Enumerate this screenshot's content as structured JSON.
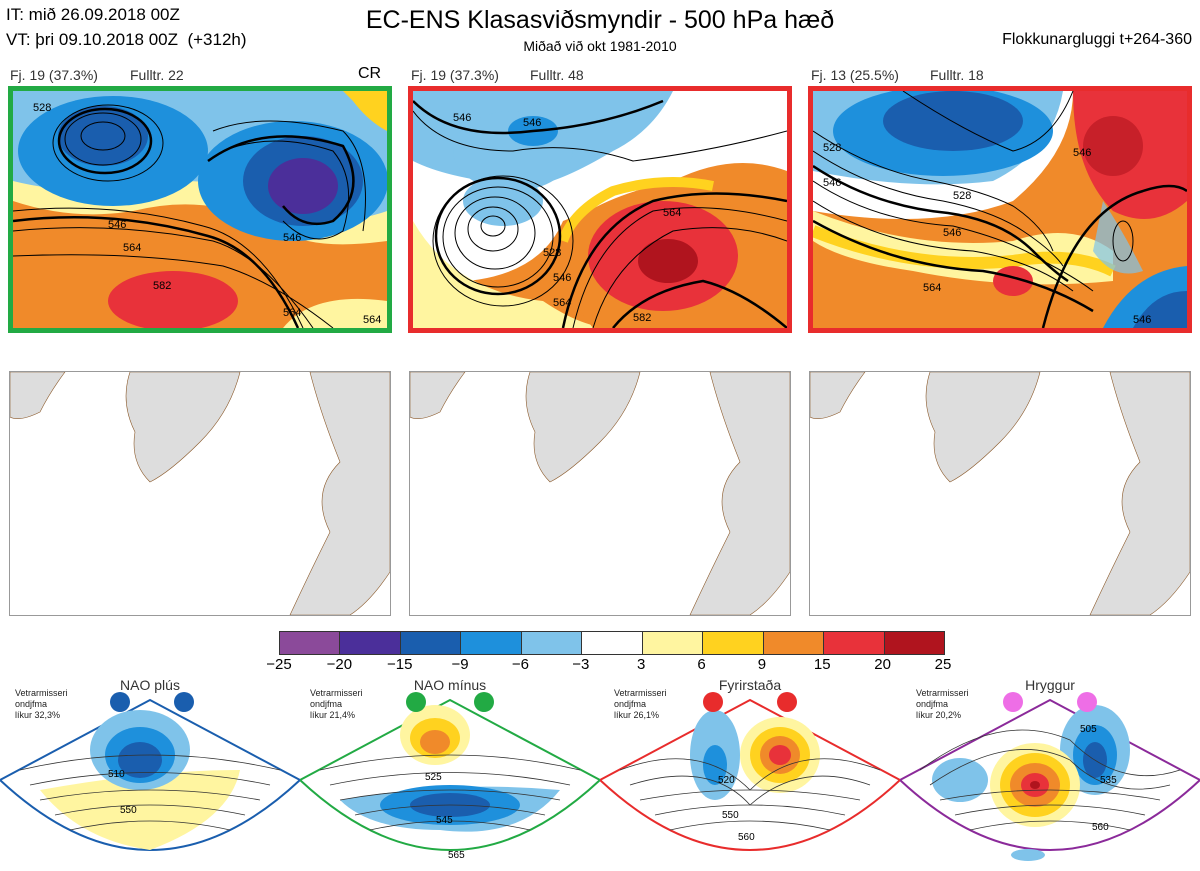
{
  "header": {
    "it_line": "IT: mið 26.09.2018 00Z",
    "vt_line": "VT: þri 09.10.2018 00Z  (+312h)",
    "title": "EC-ENS Klasasviðsmyndir - 500 hPa hæð",
    "subtitle": "Miðað við okt 1981-2010",
    "window": "Flokkunargluggi t+264-360"
  },
  "clusters": [
    {
      "label": "Fj. 19 (37.3%)",
      "rep": "Fulltr. 22",
      "tag": "CR",
      "border": "#22aa44",
      "contours": [
        "528",
        "546",
        "564",
        "582",
        "546",
        "564",
        "564"
      ]
    },
    {
      "label": "Fj. 19 (37.3%)",
      "rep": "Fulltr. 48",
      "tag": "",
      "border": "#e82c2c",
      "contours": [
        "546",
        "546",
        "528",
        "546",
        "564",
        "564",
        "582"
      ]
    },
    {
      "label": "Fj. 13 (25.5%)",
      "rep": "Fulltr. 18",
      "tag": "",
      "border": "#e82c2c",
      "contours": [
        "528",
        "546",
        "528",
        "546",
        "564",
        "546",
        "546"
      ]
    }
  ],
  "colorbar": {
    "colors": [
      "#8b4a9a",
      "#4b2f9a",
      "#1a5eae",
      "#1e90dc",
      "#7fc3ea",
      "#ffffff",
      "#fff5a0",
      "#ffd21f",
      "#f08a2a",
      "#e8323a",
      "#b0141e"
    ],
    "ticks": [
      "−25",
      "−20",
      "−15",
      "−9",
      "−6",
      "−3",
      "3",
      "6",
      "9",
      "15",
      "20",
      "25"
    ]
  },
  "regimes": [
    {
      "name": "NAO plús",
      "color": "#1a5eae",
      "small": "Vetrarmisseri\nondjfma\nlíkur 32,3%",
      "labels": [
        "510",
        "550"
      ]
    },
    {
      "name": "NAO mínus",
      "color": "#22aa44",
      "small": "Vetrarmisseri\nondjfma\nlíkur 21,4%",
      "labels": [
        "525",
        "545",
        "565"
      ]
    },
    {
      "name": "Fyrirstaða",
      "color": "#e82c2c",
      "small": "Vetrarmisseri\nondjfma\nlíkur 26,1%",
      "labels": [
        "520",
        "550",
        "560"
      ]
    },
    {
      "name": "Hryggur",
      "color": "#ee6ee6",
      "small": "Vetrarmisseri\nondjfma\nlíkur 20,2%",
      "labels": [
        "505",
        "535",
        "560"
      ]
    }
  ]
}
